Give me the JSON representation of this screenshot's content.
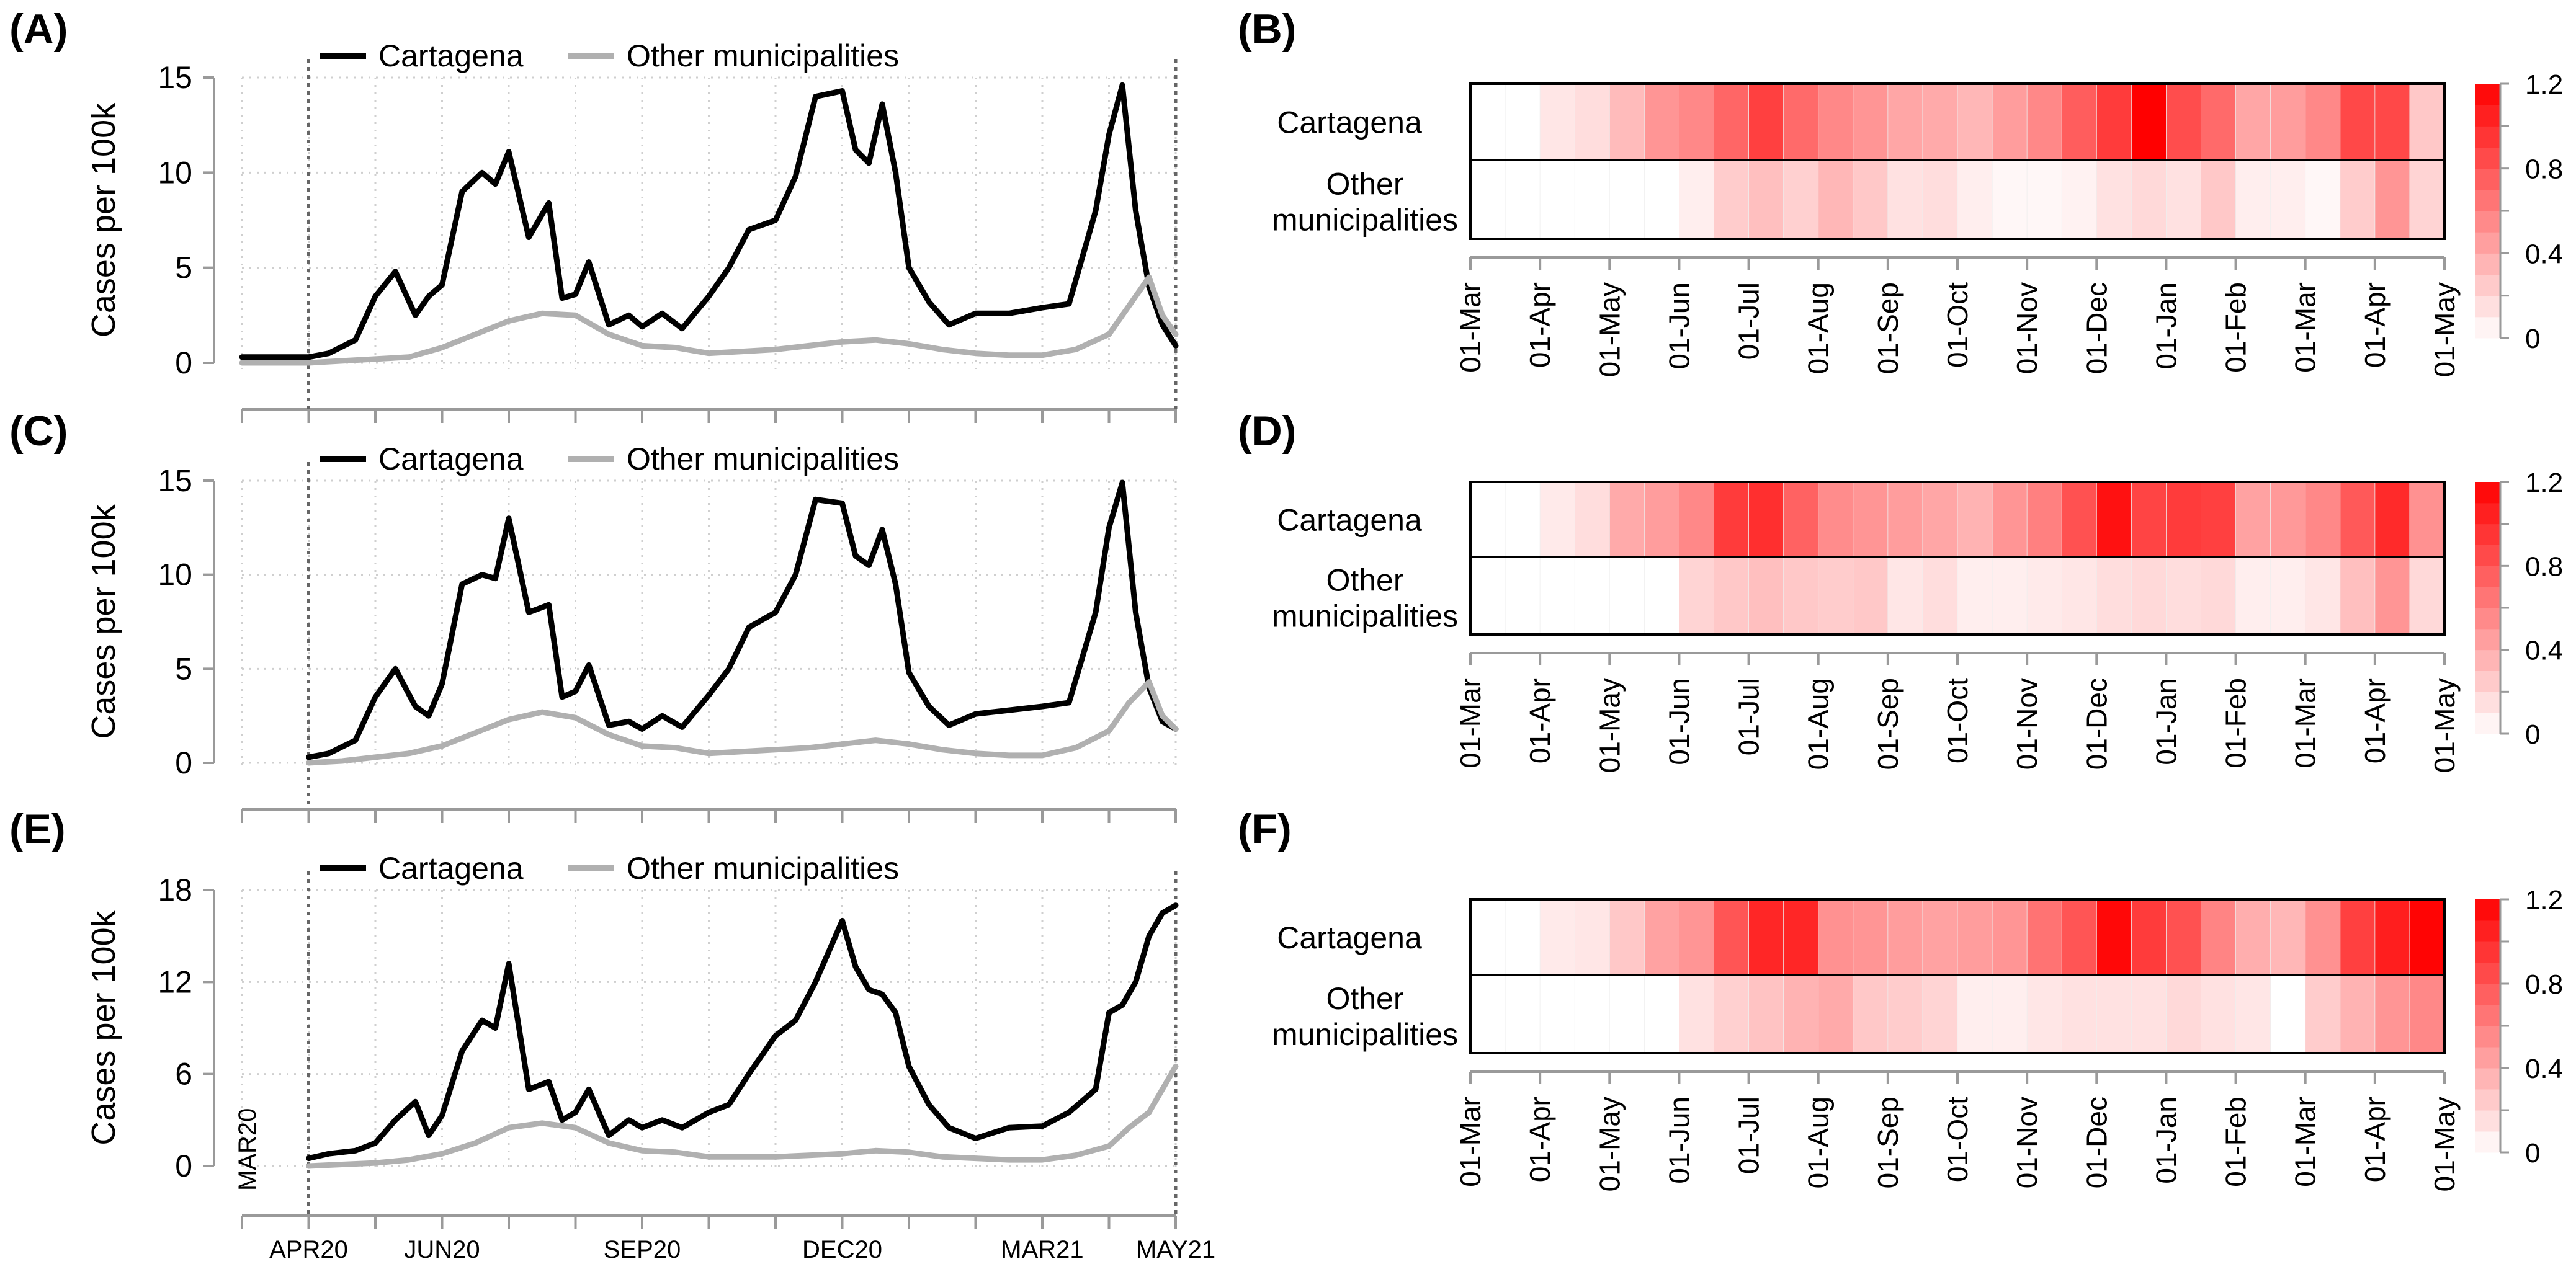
{
  "panels": {
    "A": {
      "tag": "(A)"
    },
    "B": {
      "tag": "(B)"
    },
    "C": {
      "tag": "(C)"
    },
    "D": {
      "tag": "(D)"
    },
    "E": {
      "tag": "(E)"
    },
    "F": {
      "tag": "(F)"
    }
  },
  "colors": {
    "cartagena": "#000000",
    "other": "#b0b0b0",
    "heat_low": "#ffffff",
    "heat_high": "#ff0000",
    "grid": "#cfcfcf",
    "axis": "#9a9a9a"
  },
  "chart_data": [
    {
      "id": "A",
      "type": "line",
      "ylabel": "Cases per 100k",
      "ylim": [
        0,
        15
      ],
      "yticks": [
        0,
        5,
        10,
        15
      ],
      "ytick_labels": [
        "0",
        "5",
        "10",
        "15"
      ],
      "x_range_months": [
        0,
        14
      ],
      "vlines": [
        1,
        14
      ],
      "grid": true,
      "legend_position": "top",
      "series": [
        {
          "name": "Cartagena",
          "x": [
            0,
            1,
            1.3,
            1.7,
            2,
            2.3,
            2.6,
            2.8,
            3,
            3.3,
            3.6,
            3.8,
            4,
            4.3,
            4.6,
            4.8,
            5,
            5.2,
            5.5,
            5.8,
            6,
            6.3,
            6.6,
            7,
            7.3,
            7.6,
            8,
            8.3,
            8.6,
            9,
            9.2,
            9.4,
            9.6,
            9.8,
            10,
            10.3,
            10.6,
            11,
            11.5,
            12,
            12.4,
            12.8,
            13,
            13.2,
            13.4,
            13.6,
            13.8,
            14
          ],
          "y": [
            0.3,
            0.3,
            0.5,
            1.2,
            3.5,
            4.8,
            2.5,
            3.5,
            4.1,
            9,
            10,
            9.4,
            11.1,
            6.6,
            8.4,
            3.4,
            3.6,
            5.3,
            2,
            2.5,
            1.9,
            2.6,
            1.8,
            3.5,
            5,
            7,
            7.5,
            9.8,
            14,
            14.3,
            11.2,
            10.5,
            13.6,
            10,
            5,
            3.2,
            2,
            2.6,
            2.6,
            2.9,
            3.1,
            8,
            12,
            14.6,
            8,
            4,
            2,
            0.9
          ]
        },
        {
          "name": "Other municipalities",
          "x": [
            0,
            1,
            1.5,
            2,
            2.5,
            3,
            3.5,
            4,
            4.5,
            5,
            5.5,
            6,
            6.5,
            7,
            7.5,
            8,
            8.5,
            9,
            9.5,
            10,
            10.5,
            11,
            11.5,
            12,
            12.5,
            13,
            13.3,
            13.6,
            13.8,
            14
          ],
          "y": [
            0,
            0,
            0.1,
            0.2,
            0.3,
            0.8,
            1.5,
            2.2,
            2.6,
            2.5,
            1.5,
            0.9,
            0.8,
            0.5,
            0.6,
            0.7,
            0.9,
            1.1,
            1.2,
            1,
            0.7,
            0.5,
            0.4,
            0.4,
            0.7,
            1.5,
            3,
            4.5,
            2.5,
            1.5
          ]
        }
      ]
    },
    {
      "id": "C",
      "type": "line",
      "ylabel": "Cases per 100k",
      "ylim": [
        0,
        15
      ],
      "yticks": [
        0,
        5,
        10,
        15
      ],
      "ytick_labels": [
        "0",
        "5",
        "10",
        "15"
      ],
      "x_range_months": [
        0,
        14
      ],
      "vlines": [
        1
      ],
      "grid": true,
      "legend_position": "top",
      "series": [
        {
          "name": "Cartagena",
          "x": [
            1,
            1.3,
            1.7,
            2,
            2.3,
            2.6,
            2.8,
            3,
            3.3,
            3.6,
            3.8,
            4,
            4.3,
            4.6,
            4.8,
            5,
            5.2,
            5.5,
            5.8,
            6,
            6.3,
            6.6,
            7,
            7.3,
            7.6,
            8,
            8.3,
            8.6,
            9,
            9.2,
            9.4,
            9.6,
            9.8,
            10,
            10.3,
            10.6,
            11,
            11.5,
            12,
            12.4,
            12.8,
            13,
            13.2,
            13.4,
            13.6,
            13.8,
            14
          ],
          "y": [
            0.3,
            0.5,
            1.2,
            3.5,
            5,
            3,
            2.5,
            4.2,
            9.5,
            10,
            9.8,
            13,
            8,
            8.4,
            3.5,
            3.8,
            5.2,
            2,
            2.2,
            1.8,
            2.5,
            1.9,
            3.6,
            5,
            7.2,
            8,
            10,
            14,
            13.8,
            11,
            10.5,
            12.4,
            9.5,
            4.8,
            3,
            2,
            2.6,
            2.8,
            3,
            3.2,
            8,
            12.5,
            14.9,
            8,
            4,
            2.2,
            1.8
          ]
        },
        {
          "name": "Other municipalities",
          "x": [
            1,
            1.5,
            2,
            2.5,
            3,
            3.5,
            4,
            4.5,
            5,
            5.5,
            6,
            6.5,
            7,
            7.5,
            8,
            8.5,
            9,
            9.5,
            10,
            10.5,
            11,
            11.5,
            12,
            12.5,
            13,
            13.3,
            13.6,
            13.8,
            14
          ],
          "y": [
            0,
            0.1,
            0.3,
            0.5,
            0.9,
            1.6,
            2.3,
            2.7,
            2.4,
            1.5,
            0.9,
            0.8,
            0.5,
            0.6,
            0.7,
            0.8,
            1,
            1.2,
            1,
            0.7,
            0.5,
            0.4,
            0.4,
            0.8,
            1.7,
            3.2,
            4.3,
            2.5,
            1.8
          ]
        }
      ]
    },
    {
      "id": "E",
      "type": "line",
      "ylabel": "Cases per 100k",
      "ylim": [
        0,
        18
      ],
      "yticks": [
        0,
        6,
        12,
        18
      ],
      "ytick_labels": [
        "0",
        "6",
        "12",
        "18"
      ],
      "x_range_months": [
        0,
        14
      ],
      "vlines": [
        1,
        14
      ],
      "grid": true,
      "legend_position": "top",
      "x_tick_labels": [
        {
          "m": 0,
          "label": "MAR20",
          "vertical": true
        },
        {
          "m": 1,
          "label": "APR20"
        },
        {
          "m": 3,
          "label": "JUN20"
        },
        {
          "m": 6,
          "label": "SEP20"
        },
        {
          "m": 9,
          "label": "DEC20"
        },
        {
          "m": 12,
          "label": "MAR21"
        },
        {
          "m": 14,
          "label": "MAY21"
        }
      ],
      "series": [
        {
          "name": "Cartagena",
          "x": [
            1,
            1.3,
            1.7,
            2,
            2.3,
            2.6,
            2.8,
            3,
            3.3,
            3.6,
            3.8,
            4,
            4.3,
            4.6,
            4.8,
            5,
            5.2,
            5.5,
            5.8,
            6,
            6.3,
            6.6,
            7,
            7.3,
            7.6,
            8,
            8.3,
            8.6,
            9,
            9.2,
            9.4,
            9.6,
            9.8,
            10,
            10.3,
            10.6,
            11,
            11.5,
            12,
            12.4,
            12.8,
            13,
            13.2,
            13.4,
            13.6,
            13.8,
            14
          ],
          "y": [
            0.5,
            0.8,
            1,
            1.5,
            3,
            4.2,
            2,
            3.3,
            7.5,
            9.5,
            9,
            13.2,
            5,
            5.5,
            3,
            3.5,
            5,
            2,
            3,
            2.5,
            3,
            2.5,
            3.5,
            4,
            6,
            8.5,
            9.5,
            12,
            16,
            13,
            11.5,
            11.2,
            10,
            6.5,
            4,
            2.5,
            1.8,
            2.5,
            2.6,
            3.5,
            5,
            10,
            10.5,
            12,
            15,
            16.5,
            17
          ]
        },
        {
          "name": "Other municipalities",
          "x": [
            1,
            1.5,
            2,
            2.5,
            3,
            3.5,
            4,
            4.5,
            5,
            5.5,
            6,
            6.5,
            7,
            7.5,
            8,
            8.5,
            9,
            9.5,
            10,
            10.5,
            11,
            11.5,
            12,
            12.5,
            13,
            13.3,
            13.6,
            13.8,
            14
          ],
          "y": [
            0,
            0.1,
            0.2,
            0.4,
            0.8,
            1.5,
            2.5,
            2.8,
            2.5,
            1.5,
            1,
            0.9,
            0.6,
            0.6,
            0.6,
            0.7,
            0.8,
            1,
            0.9,
            0.6,
            0.5,
            0.4,
            0.4,
            0.7,
            1.3,
            2.5,
            3.5,
            5,
            6.5
          ]
        }
      ]
    },
    {
      "id": "B",
      "type": "heatmap",
      "rows": [
        "Cartagena",
        "Other\nmunicipalities"
      ],
      "columns": [
        "01-Mar",
        "01-Apr",
        "01-May",
        "01-Jun",
        "01-Jul",
        "01-Aug",
        "01-Sep",
        "01-Oct",
        "01-Nov",
        "01-Dec",
        "01-Jan",
        "01-Feb",
        "01-Mar",
        "01-Apr",
        "01-May"
      ],
      "colorbar": {
        "min": 0,
        "max": 1.2,
        "ticks": [
          "0",
          "0.2",
          "0.4",
          "0.6",
          "0.8",
          "1.0",
          "1.2"
        ]
      },
      "values": [
        [
          0,
          0,
          0.12,
          0.16,
          0.32,
          0.5,
          0.56,
          0.72,
          0.9,
          0.7,
          0.56,
          0.5,
          0.42,
          0.4,
          0.34,
          0.46,
          0.56,
          0.76,
          0.92,
          1.2,
          0.84,
          0.7,
          0.42,
          0.46,
          0.56,
          0.86,
          0.86,
          0.26
        ],
        [
          0,
          0,
          0,
          0,
          0,
          0,
          0.08,
          0.24,
          0.3,
          0.22,
          0.34,
          0.26,
          0.14,
          0.16,
          0.08,
          0.04,
          0.04,
          0.06,
          0.14,
          0.18,
          0.14,
          0.26,
          0.08,
          0.08,
          0.04,
          0.24,
          0.5,
          0.2
        ]
      ]
    },
    {
      "id": "D",
      "type": "heatmap",
      "rows": [
        "Cartagena",
        "Other\nmunicipalities"
      ],
      "columns": [
        "01-Mar",
        "01-Apr",
        "01-May",
        "01-Jun",
        "01-Jul",
        "01-Aug",
        "01-Sep",
        "01-Oct",
        "01-Nov",
        "01-Dec",
        "01-Jan",
        "01-Feb",
        "01-Mar",
        "01-Apr",
        "01-May"
      ],
      "colorbar": {
        "min": 0,
        "max": 1.2,
        "ticks": [
          "0",
          "0.2",
          "0.4",
          "0.6",
          "0.8",
          "1.0",
          "1.2"
        ]
      },
      "values": [
        [
          0,
          0,
          0.1,
          0.16,
          0.4,
          0.46,
          0.56,
          0.92,
          0.98,
          0.74,
          0.54,
          0.5,
          0.46,
          0.42,
          0.36,
          0.5,
          0.6,
          0.82,
          1.12,
          0.88,
          0.92,
          0.9,
          0.44,
          0.48,
          0.56,
          0.78,
          1.0,
          0.52
        ],
        [
          0,
          0,
          0,
          0,
          0,
          0,
          0.2,
          0.26,
          0.3,
          0.26,
          0.24,
          0.26,
          0.12,
          0.16,
          0.08,
          0.08,
          0.1,
          0.12,
          0.16,
          0.18,
          0.16,
          0.18,
          0.08,
          0.08,
          0.12,
          0.3,
          0.5,
          0.18
        ]
      ]
    },
    {
      "id": "F",
      "type": "heatmap",
      "rows": [
        "Cartagena",
        "Other\nmunicipalities"
      ],
      "columns": [
        "01-Mar",
        "01-Apr",
        "01-May",
        "01-Jun",
        "01-Jul",
        "01-Aug",
        "01-Sep",
        "01-Oct",
        "01-Nov",
        "01-Dec",
        "01-Jan",
        "01-Feb",
        "01-Mar",
        "01-Apr",
        "01-May"
      ],
      "colorbar": {
        "min": 0,
        "max": 1.2,
        "ticks": [
          "0",
          "0.2",
          "0.4",
          "0.6",
          "0.8",
          "1.0",
          "1.2"
        ]
      },
      "values": [
        [
          0,
          0,
          0.1,
          0.12,
          0.26,
          0.44,
          0.5,
          0.8,
          1.02,
          1.02,
          0.52,
          0.5,
          0.46,
          0.44,
          0.46,
          0.5,
          0.66,
          0.8,
          1.16,
          0.92,
          0.82,
          0.58,
          0.38,
          0.34,
          0.52,
          0.9,
          1.06,
          1.18
        ],
        [
          0,
          0,
          0,
          0,
          0,
          0,
          0.14,
          0.22,
          0.28,
          0.36,
          0.4,
          0.26,
          0.24,
          0.2,
          0.08,
          0.08,
          0.12,
          0.14,
          0.14,
          0.14,
          0.18,
          0.14,
          0.12,
          0.0,
          0.24,
          0.36,
          0.5,
          0.56
        ]
      ]
    }
  ]
}
